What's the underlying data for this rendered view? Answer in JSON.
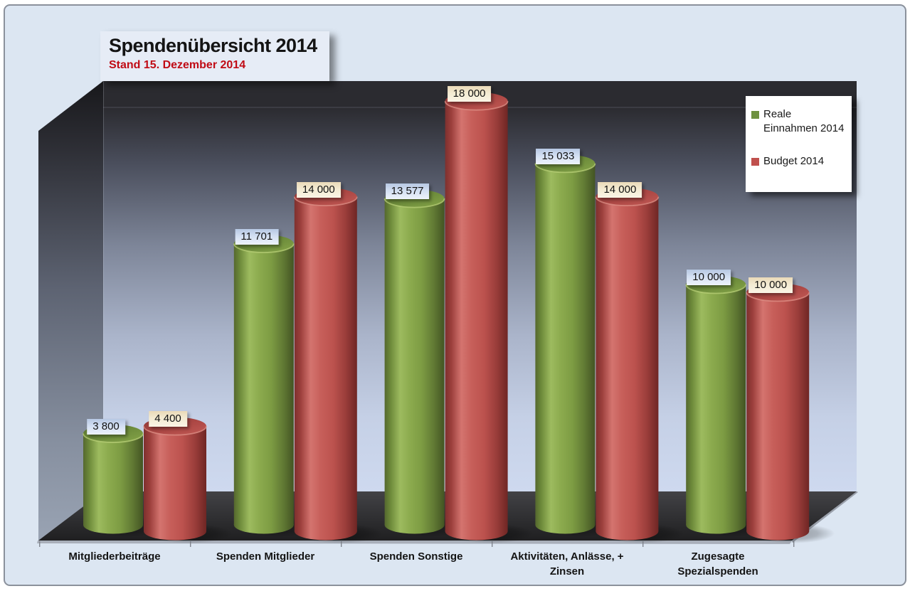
{
  "page": {
    "background_color": "#dce6f2",
    "border_color": "#8b919c"
  },
  "header": {
    "title": "Spendenübersicht 2014",
    "subtitle": "Stand 15. Dezember 2014",
    "subtitle_color": "#c00b15"
  },
  "legend": {
    "position": "top-right",
    "items": [
      {
        "label": "Reale Einnahmen 2014",
        "color": "#6e9140"
      },
      {
        "label": "Budget 2014",
        "color": "#c0504d"
      }
    ]
  },
  "chart_data": {
    "type": "bar",
    "style": "3d-cylinder",
    "title": "Spendenübersicht 2014",
    "subtitle": "Stand 15. Dezember 2014",
    "categories": [
      "Mitgliederbeiträge",
      "Spenden Mitglieder",
      "Spenden Sonstige",
      "Aktivitäten, Anlässe, + Zinsen",
      "Zugesagte Spezialspenden"
    ],
    "series": [
      {
        "name": "Reale Einnahmen 2014",
        "color": "#6e9140",
        "values": [
          3800,
          11701,
          13577,
          15033,
          10000
        ],
        "labels": [
          "3 800",
          "11 701",
          "13 577",
          "15 033",
          "10 000"
        ]
      },
      {
        "name": "Budget 2014",
        "color": "#c0504d",
        "values": [
          4400,
          14000,
          18000,
          14000,
          10000
        ],
        "labels": [
          "4 400",
          "14 000",
          "18 000",
          "14 000",
          "10 000"
        ]
      }
    ],
    "value_axis": {
      "visible": false,
      "min": 0
    },
    "gridlines": false,
    "legend_position": "top-right",
    "data_labels": "above-bars"
  }
}
